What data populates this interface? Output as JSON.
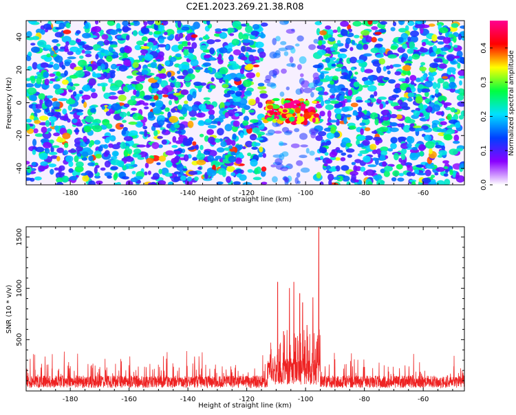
{
  "title": "C2E1.2023.269.21.38.R08",
  "chart_data": [
    {
      "type": "heatmap",
      "xlabel": "Height of straight line (km)",
      "ylabel": "Frequency (Hz)",
      "xlim": [
        -195,
        -46
      ],
      "ylim": [
        -50,
        50
      ],
      "x_ticks": [
        -180,
        -160,
        -140,
        -120,
        -100,
        -80,
        -60
      ],
      "y_ticks": [
        -40,
        -20,
        0,
        20,
        40
      ],
      "colorbar": {
        "label": "Normalized spectral amplitude",
        "range": [
          0.0,
          0.48
        ],
        "ticks": [
          0.0,
          0.1,
          0.2,
          0.3,
          0.4
        ],
        "colors": [
          "#ffffff",
          "#8a00ff",
          "#0040ff",
          "#00e0ff",
          "#00ff40",
          "#ffff00",
          "#ff0000",
          "#ff0090"
        ]
      },
      "low_signal_band_km": [
        -114,
        -96
      ],
      "signal_cluster": {
        "x_range_km": [
          -114,
          -96
        ],
        "freq_range_hz": [
          -12,
          2
        ],
        "peak_amplitude": 0.45,
        "peak_x_km": -107,
        "peak_freq_hz": -5
      }
    },
    {
      "type": "line",
      "xlabel": "Height of straight line (km)",
      "ylabel": "SNR (10 * v/v)",
      "xlim": [
        -195,
        -46
      ],
      "ylim": [
        0,
        1600
      ],
      "x_ticks": [
        -180,
        -160,
        -140,
        -120,
        -100,
        -80,
        -60
      ],
      "y_ticks": [
        500,
        1000,
        1500
      ],
      "color": "#ee2222",
      "noise_floor": [
        0,
        200
      ],
      "spikes": [
        {
          "x": -109.5,
          "y": 1060
        },
        {
          "x": -107.5,
          "y": 580
        },
        {
          "x": -105.5,
          "y": 1000
        },
        {
          "x": -104.0,
          "y": 1060
        },
        {
          "x": -102.0,
          "y": 950
        },
        {
          "x": -101.0,
          "y": 860
        },
        {
          "x": -99.5,
          "y": 640
        },
        {
          "x": -97.5,
          "y": 910
        },
        {
          "x": -95.5,
          "y": 1600
        }
      ]
    }
  ]
}
